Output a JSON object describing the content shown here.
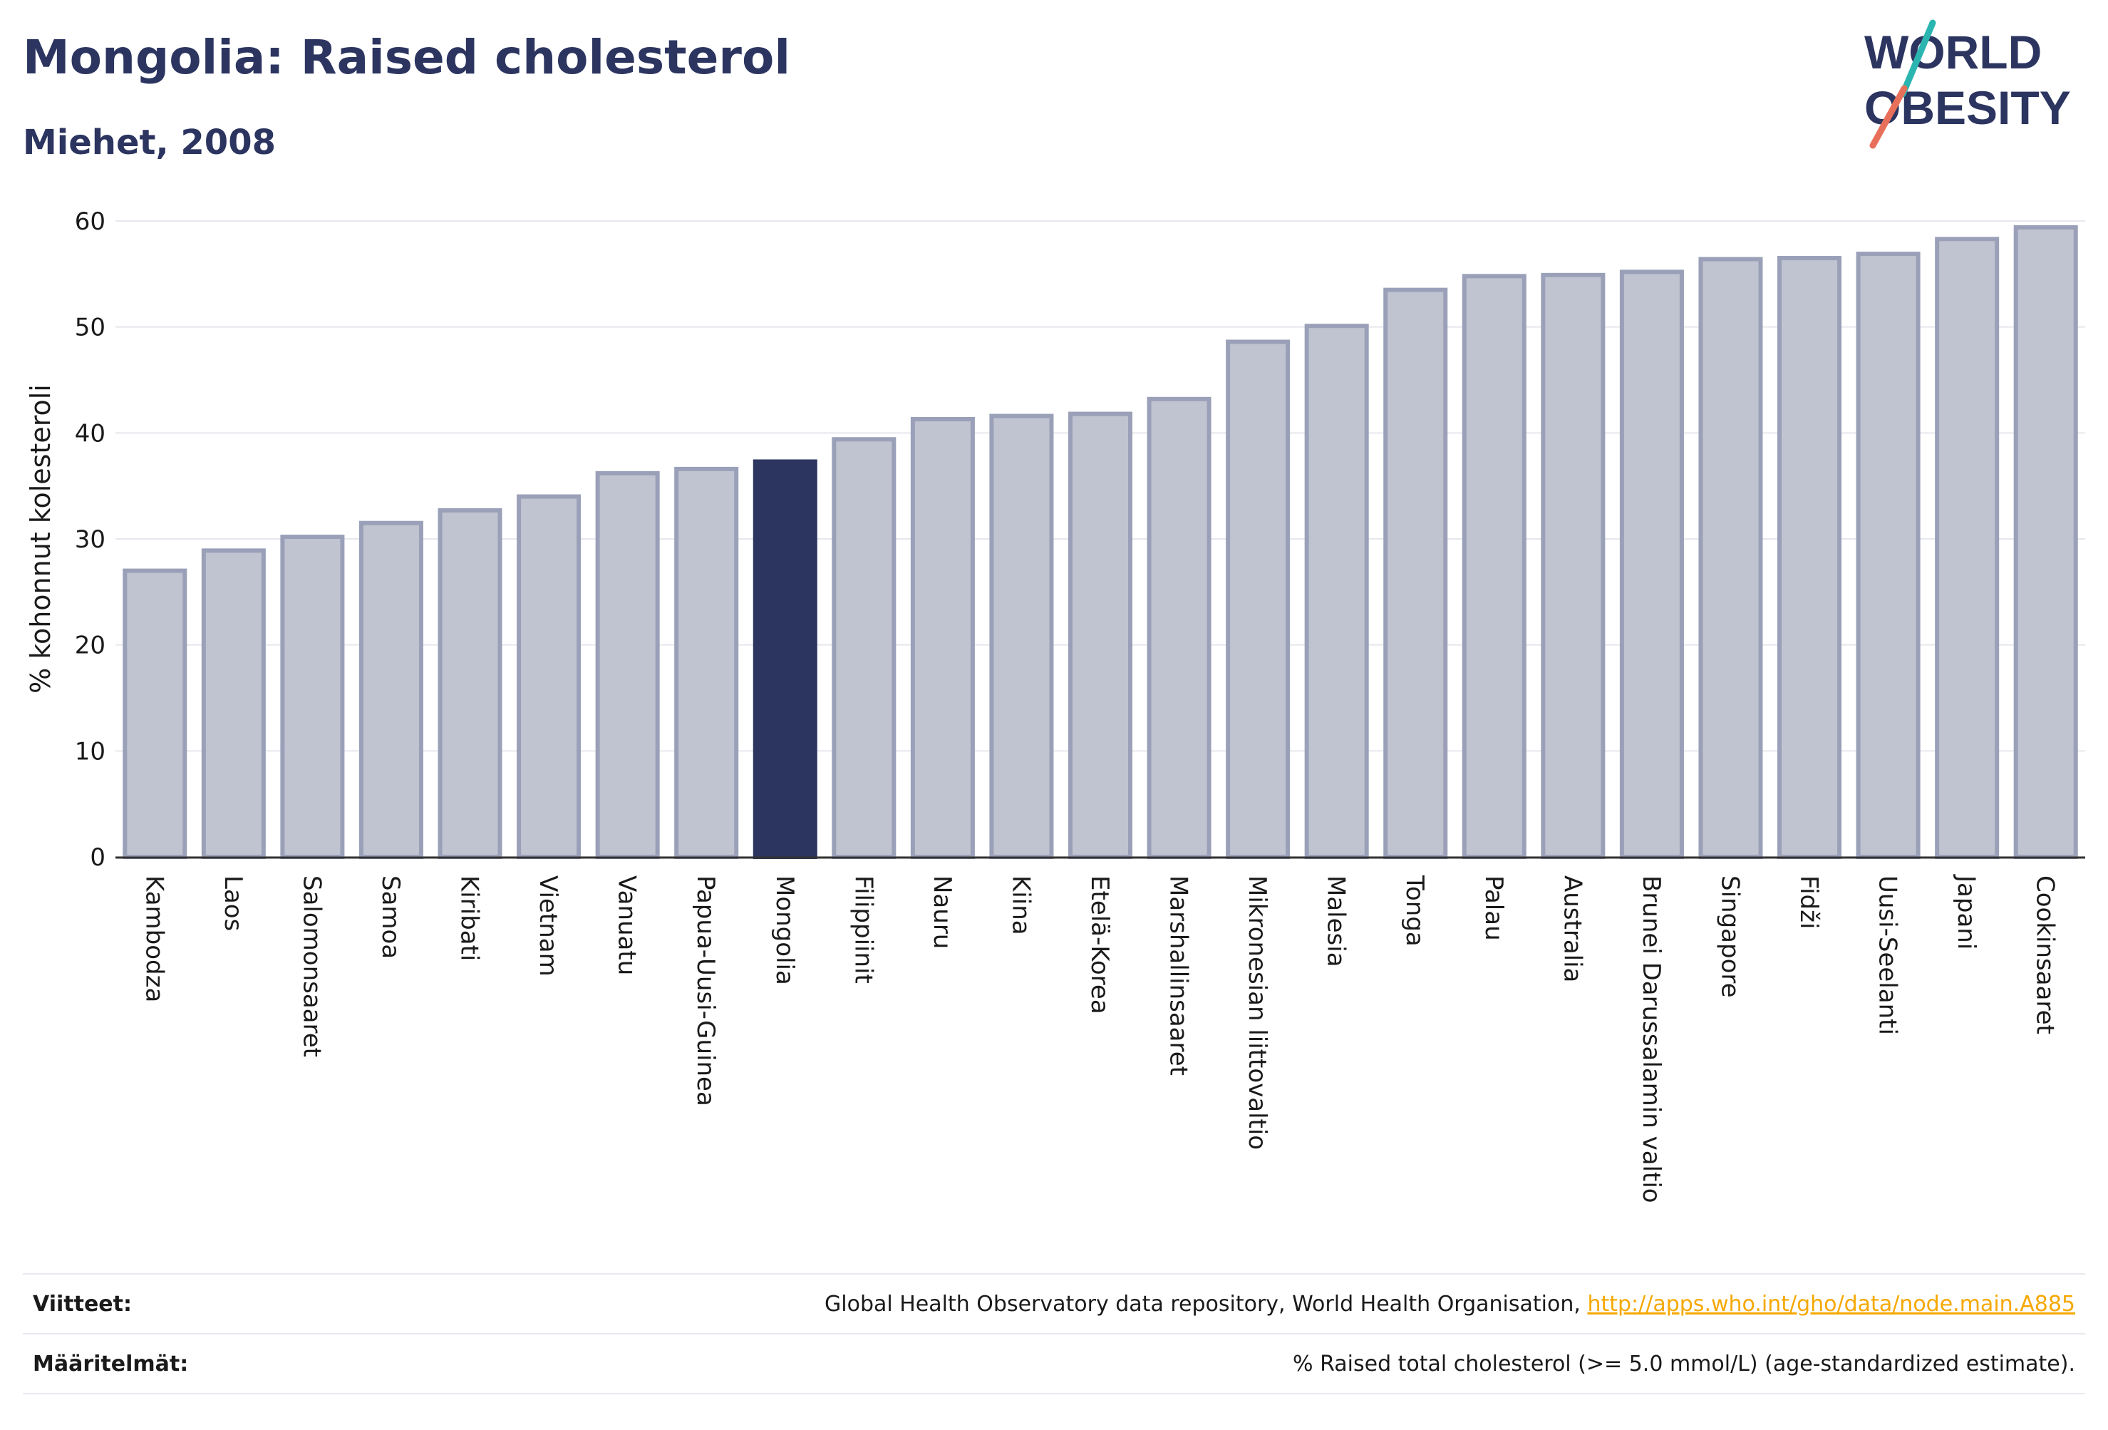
{
  "header": {
    "title": "Mongolia: Raised cholesterol",
    "subtitle": "Miehet, 2008"
  },
  "logo": {
    "line1": "WORLD",
    "line2": "OBESITY",
    "accent_colors": [
      "#2bb5b0",
      "#e8705a"
    ]
  },
  "colors": {
    "bar": "#c0c3d0",
    "bar_border": "#9aa0b8",
    "highlight": "#2c3560",
    "grid": "#e6e8ee",
    "axis": "#333333"
  },
  "chart_data": {
    "type": "bar",
    "ylabel": "% kohonnut kolesteroli",
    "xlabel": "",
    "ylim": [
      0,
      60
    ],
    "yticks": [
      0,
      10,
      20,
      30,
      40,
      50,
      60
    ],
    "grid": true,
    "highlight": "Mongolia",
    "categories": [
      "Kambodza",
      "Laos",
      "Salomonsaaret",
      "Samoa",
      "Kiribati",
      "Vietnam",
      "Vanuatu",
      "Papua-Uusi-Guinea",
      "Mongolia",
      "Filippiinit",
      "Nauru",
      "Kiina",
      "Etelä-Korea",
      "Marshallinsaaret",
      "Mikronesian liittovaltio",
      "Malesia",
      "Tonga",
      "Palau",
      "Australia",
      "Brunei Darussalamin valtio",
      "Singapore",
      "Fidži",
      "Uusi-Seelanti",
      "Japani",
      "Cookinsaaret"
    ],
    "values": [
      27.0,
      28.9,
      30.2,
      31.5,
      32.7,
      34.0,
      36.2,
      36.6,
      37.3,
      39.4,
      41.3,
      41.6,
      41.8,
      43.2,
      48.6,
      50.1,
      53.5,
      54.8,
      54.9,
      55.2,
      56.4,
      56.5,
      56.9,
      58.3,
      59.4
    ]
  },
  "footer": {
    "sources_label": "Viitteet:",
    "sources_text": "Global Health Observatory data repository, World Health Organisation, ",
    "sources_link": "http://apps.who.int/gho/data/node.main.A885",
    "definitions_label": "Määritelmät:",
    "definitions_text": "% Raised total cholesterol (>= 5.0 mmol/L) (age-standardized estimate)."
  }
}
